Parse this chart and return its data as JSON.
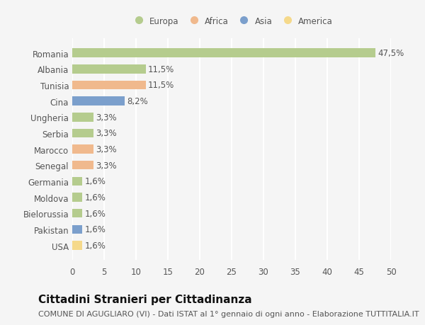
{
  "categories": [
    "Romania",
    "Albania",
    "Tunisia",
    "Cina",
    "Ungheria",
    "Serbia",
    "Marocco",
    "Senegal",
    "Germania",
    "Moldova",
    "Bielorussia",
    "Pakistan",
    "USA"
  ],
  "values": [
    47.5,
    11.5,
    11.5,
    8.2,
    3.3,
    3.3,
    3.3,
    3.3,
    1.6,
    1.6,
    1.6,
    1.6,
    1.6
  ],
  "labels": [
    "47,5%",
    "11,5%",
    "11,5%",
    "8,2%",
    "3,3%",
    "3,3%",
    "3,3%",
    "3,3%",
    "1,6%",
    "1,6%",
    "1,6%",
    "1,6%",
    "1,6%"
  ],
  "colors": [
    "#b5cc8e",
    "#b5cc8e",
    "#f0b98d",
    "#7b9fcc",
    "#b5cc8e",
    "#b5cc8e",
    "#f0b98d",
    "#f0b98d",
    "#b5cc8e",
    "#b5cc8e",
    "#b5cc8e",
    "#7b9fcc",
    "#f5d98b"
  ],
  "legend_labels": [
    "Europa",
    "Africa",
    "Asia",
    "America"
  ],
  "legend_colors": [
    "#b5cc8e",
    "#f0b98d",
    "#7b9fcc",
    "#f5d98b"
  ],
  "xlim": [
    0,
    50
  ],
  "xticks": [
    0,
    5,
    10,
    15,
    20,
    25,
    30,
    35,
    40,
    45,
    50
  ],
  "title": "Cittadini Stranieri per Cittadinanza",
  "subtitle": "COMUNE DI AGUGLIARO (VI) - Dati ISTAT al 1° gennaio di ogni anno - Elaborazione TUTTITALIA.IT",
  "background_color": "#f5f5f5",
  "bar_height": 0.55,
  "grid_color": "#ffffff",
  "label_fontsize": 8.5,
  "tick_fontsize": 8.5,
  "title_fontsize": 11,
  "subtitle_fontsize": 8
}
